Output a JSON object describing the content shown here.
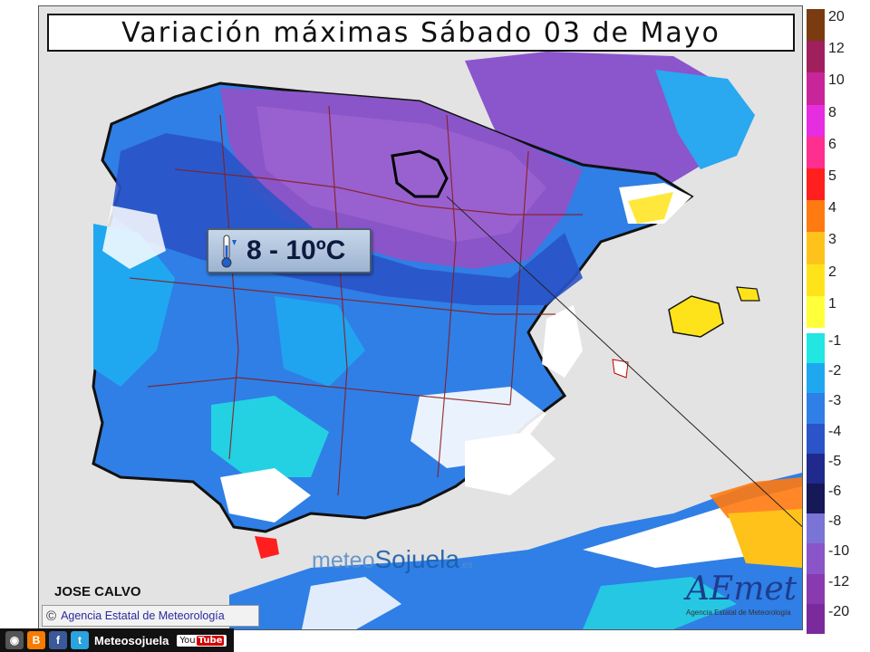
{
  "title": "Variación máximas Sábado 03 de Mayo",
  "callout": {
    "value": "8 - 10ºC",
    "icon": "thermometer-down-icon"
  },
  "author": "JOSE CALVO",
  "credit": {
    "symbol": "©",
    "text": "Agencia Estatal de Meteorología"
  },
  "watermark": {
    "part1": "meteo",
    "part2": "Sojuela",
    "suffix": ".es"
  },
  "logo": {
    "word": "AEmet",
    "subtitle": "Agencia Estatal de Meteorología"
  },
  "social": {
    "handle": "Meteosojuela",
    "youtube_left": "You",
    "youtube_right": "Tube",
    "icons": [
      "instagram-icon",
      "blogger-icon",
      "facebook-icon",
      "twitter-icon",
      "youtube-icon"
    ]
  },
  "legend": {
    "positive": [
      {
        "label": "20",
        "color": "#7a3b10"
      },
      {
        "label": "12",
        "color": "#a0205e"
      },
      {
        "label": "10",
        "color": "#c8259a"
      },
      {
        "label": "8",
        "color": "#e62ee0"
      },
      {
        "label": "6",
        "color": "#ff2f8f"
      },
      {
        "label": "5",
        "color": "#ff1f1f"
      },
      {
        "label": "4",
        "color": "#ff7a10"
      },
      {
        "label": "3",
        "color": "#ffc21a"
      },
      {
        "label": "2",
        "color": "#ffe31a"
      },
      {
        "label": "1",
        "color": "#ffff3a"
      }
    ],
    "negative": [
      {
        "label": "-1",
        "color": "#21e6e1"
      },
      {
        "label": "-2",
        "color": "#1fa8f0"
      },
      {
        "label": "-3",
        "color": "#2f7fe6"
      },
      {
        "label": "-4",
        "color": "#2a54c8"
      },
      {
        "label": "-5",
        "color": "#1f2a8c"
      },
      {
        "label": "-6",
        "color": "#161858"
      },
      {
        "label": "-8",
        "color": "#7a74d6"
      },
      {
        "label": "-10",
        "color": "#8a55c8"
      },
      {
        "label": "-12",
        "color": "#8a3ab0"
      },
      {
        "label": "-20",
        "color": "#7a2a9c"
      }
    ]
  }
}
